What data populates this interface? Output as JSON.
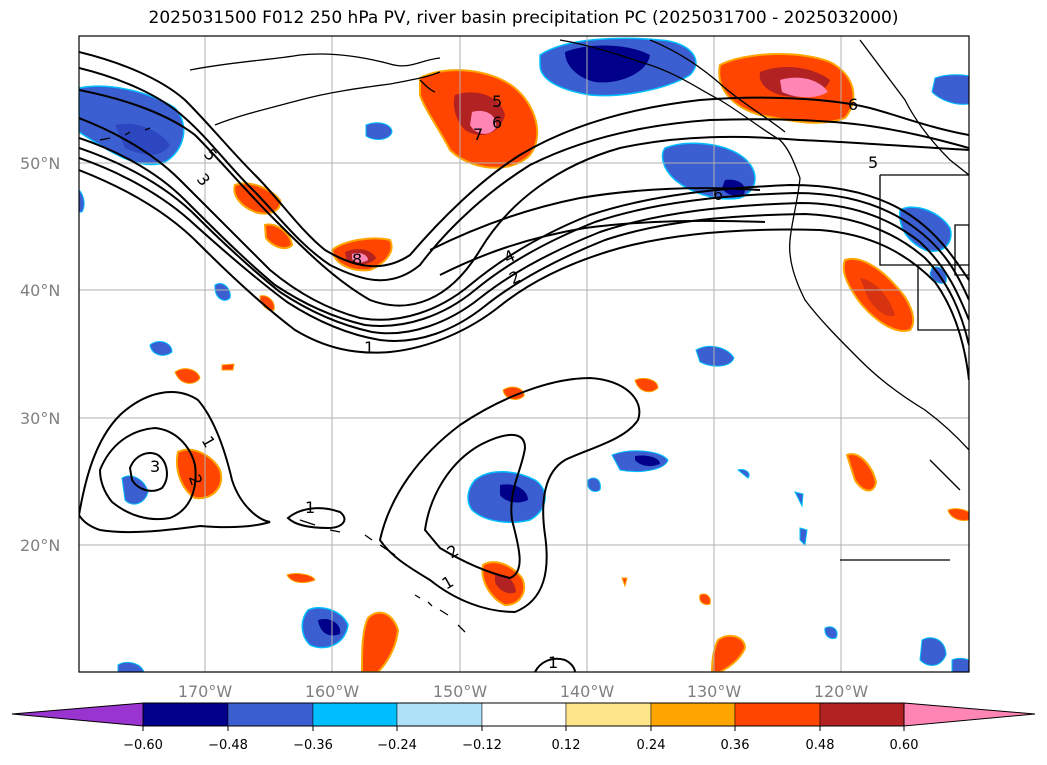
{
  "title": "2025031500 F012 250 hPa PV, river basin precipitation PC (2025031700 - 2025032000)",
  "lat_labels": [
    "50°N",
    "40°N",
    "30°N",
    "20°N"
  ],
  "lon_labels": [
    "170°W",
    "160°W",
    "150°W",
    "140°W",
    "130°W",
    "120°W"
  ],
  "colorbar": {
    "ticks": [
      "−0.60",
      "−0.48",
      "−0.36",
      "−0.24",
      "−0.12",
      "0.12",
      "0.24",
      "0.36",
      "0.48",
      "0.60"
    ],
    "colors": [
      "#9a34d0",
      "#00008b",
      "#3b5fd0",
      "#00bfff",
      "#afe1f8",
      "#ffffff",
      "#fde68a",
      "#ffa500",
      "#ff4500",
      "#b22222",
      "#ff85b5",
      "#ff85b5"
    ]
  },
  "contour_labels": {
    "c1": "5",
    "c2": "6",
    "c3": "7",
    "c4": "5",
    "c5": "3",
    "c6": "8",
    "c7": "4",
    "c8": "2",
    "c9": "1",
    "c10": "6",
    "c11": "6",
    "c12": "5",
    "c13": "1",
    "c14": "3",
    "c15": "2",
    "c16": "1",
    "c17": "2",
    "c18": "1",
    "c19": "1"
  }
}
